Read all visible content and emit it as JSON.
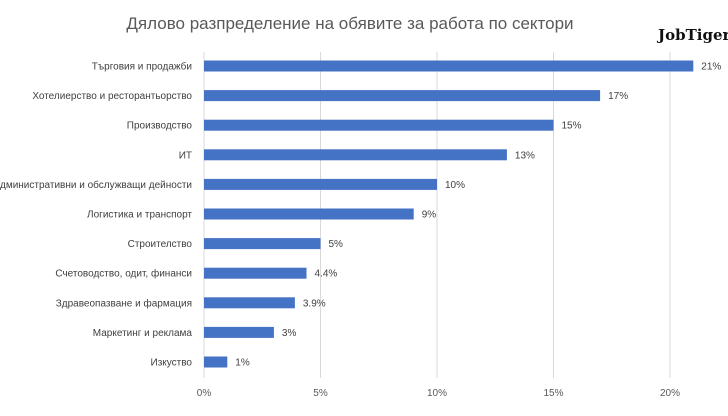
{
  "chart_data": {
    "type": "bar",
    "orientation": "horizontal",
    "title": "Дялово разпределение на обявите за работа по сектори",
    "categories": [
      "Търговия и продажби",
      "Хотелиерство и ресторантьорство",
      "Производство",
      "ИТ",
      "Административни и обслужващи дейности",
      "Логистика и транспорт",
      "Строителство",
      "Счетоводство, одит, финанси",
      "Здравеопазване и фармация",
      "Маркетинг и реклама",
      "Изкуство"
    ],
    "values": [
      21,
      17,
      15,
      13,
      10,
      9,
      5,
      4.4,
      3.9,
      3,
      1
    ],
    "data_labels": [
      "21%",
      "17%",
      "15%",
      "13%",
      "10%",
      "9%",
      "5%",
      "4.4%",
      "3.9%",
      "3%",
      "1%"
    ],
    "xlim": [
      0,
      22
    ],
    "x_ticks": [
      0,
      5,
      10,
      15,
      20
    ],
    "x_tick_labels": [
      "0%",
      "5%",
      "10%",
      "15%",
      "20%"
    ],
    "xlabel": "",
    "ylabel": "",
    "grid": "vertical",
    "legend": "none",
    "bar_color": "#4472C4"
  },
  "logo": "JobTiger"
}
